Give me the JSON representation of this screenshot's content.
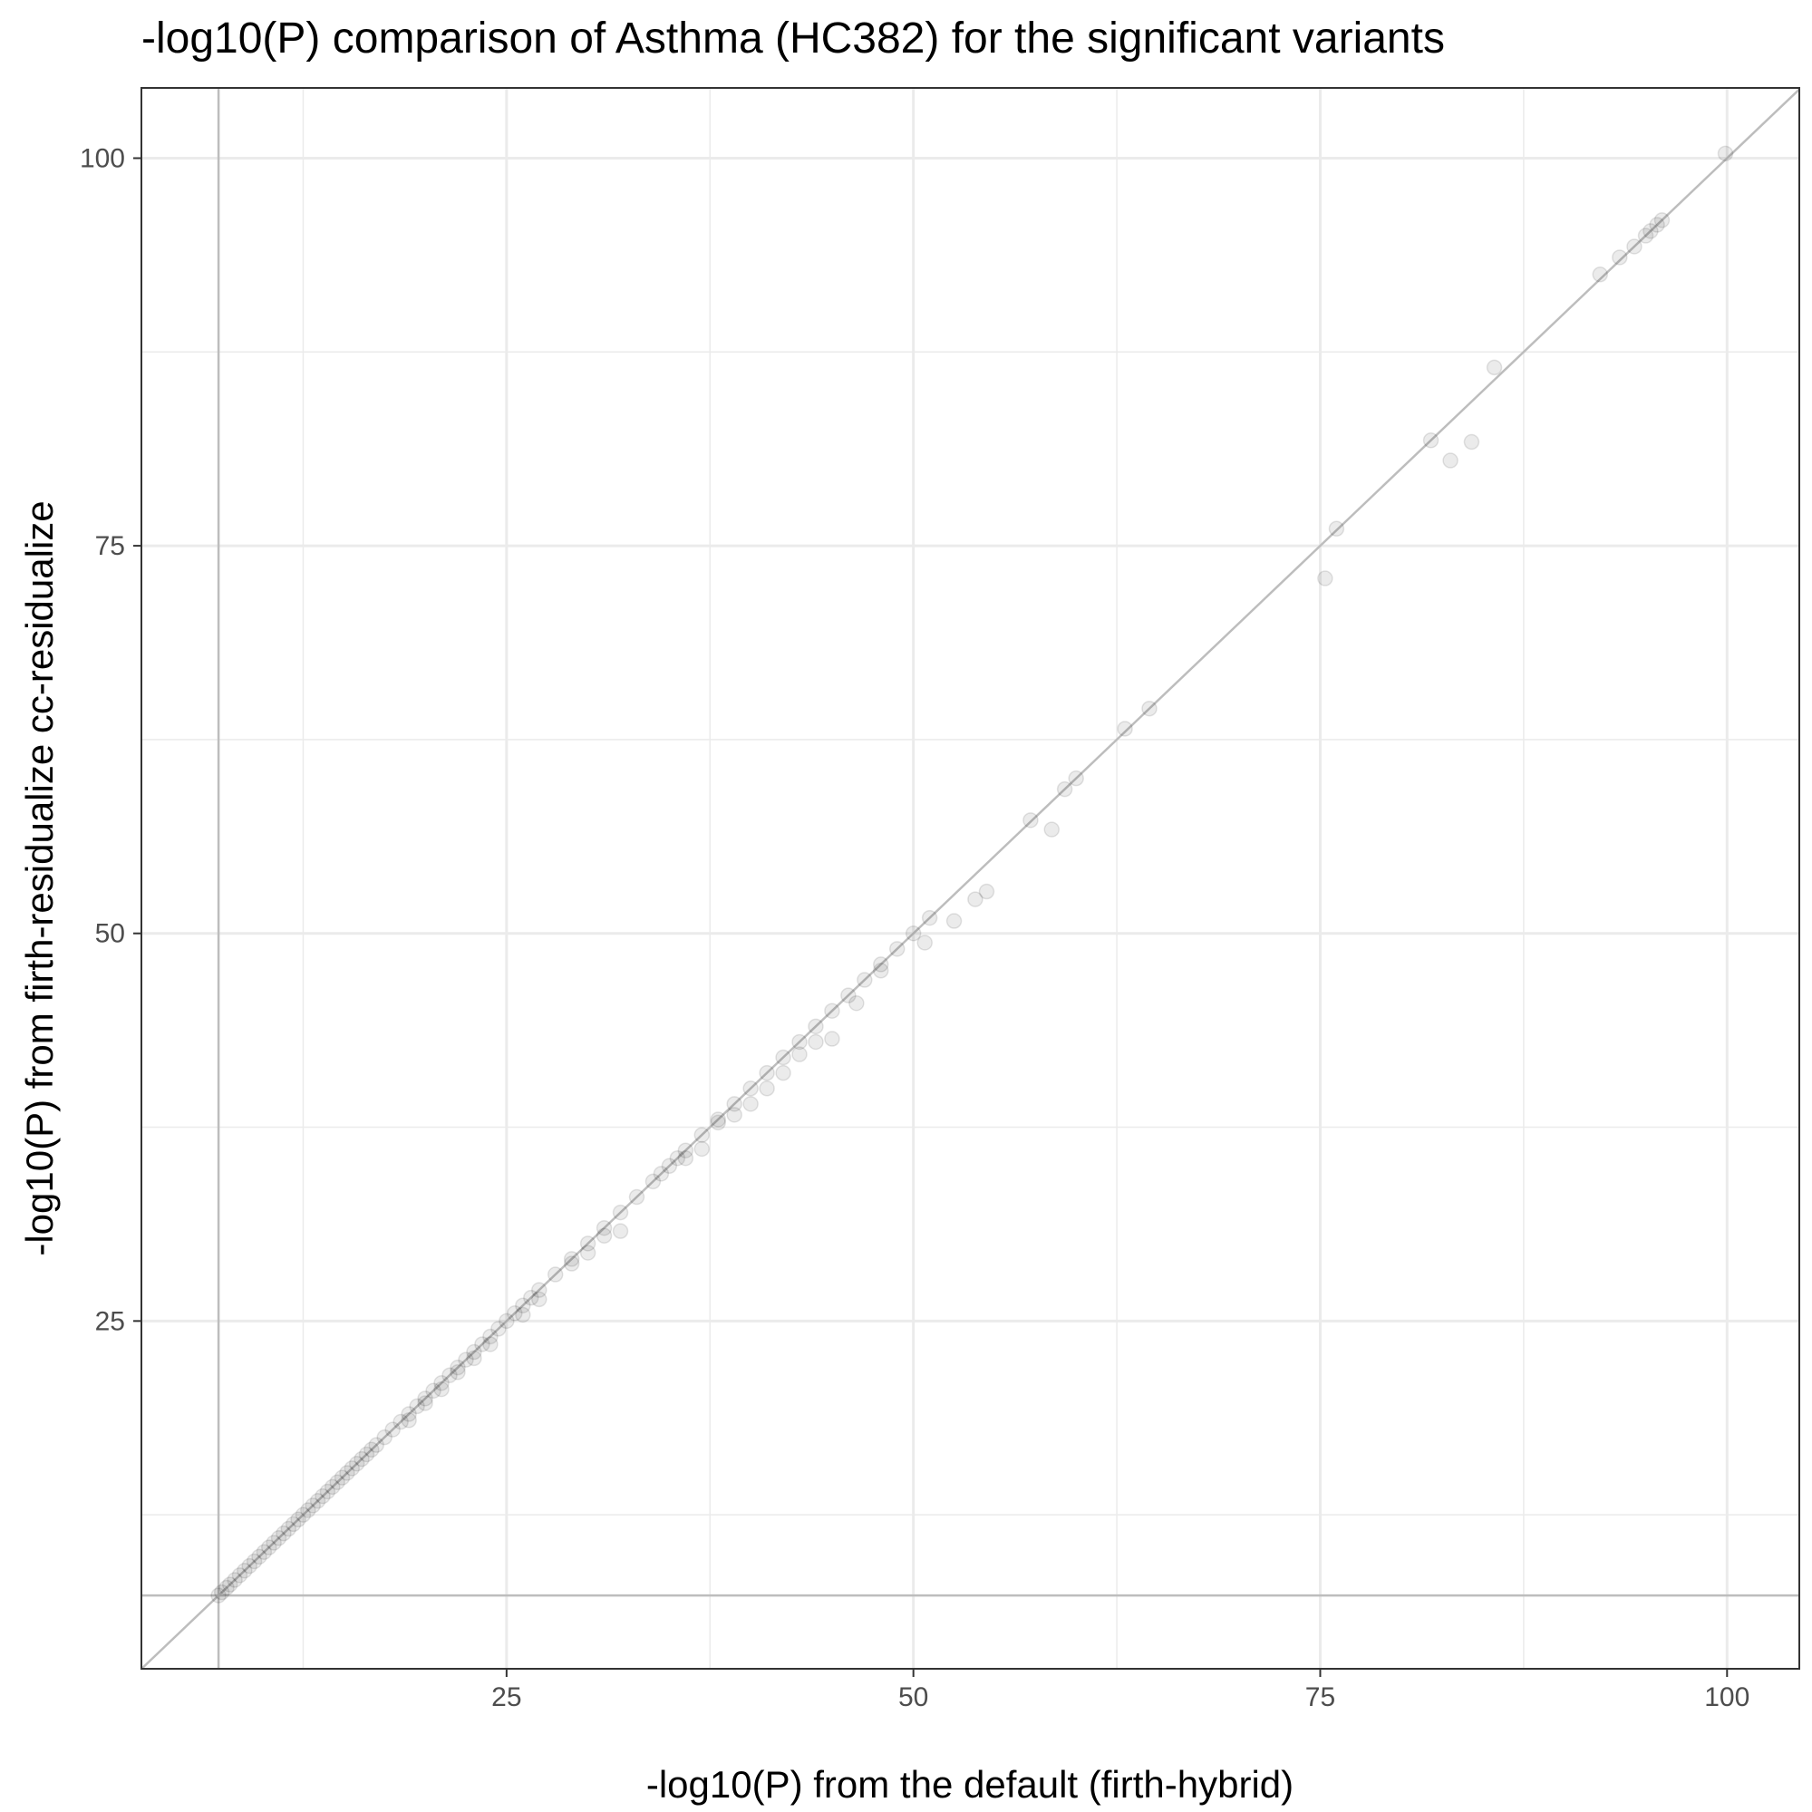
{
  "chart_data": {
    "type": "scatter",
    "title": "-log10(P) comparison of Asthma (HC382) for the significant variants",
    "xlabel": "-log10(P) from the default (firth-hybrid)",
    "ylabel": "-log10(P) from firth-residualize cc-residualize",
    "xlim": [
      2.56,
      104.44
    ],
    "ylim": [
      2.57,
      104.53
    ],
    "x_ticks": [
      25,
      50,
      75,
      100
    ],
    "y_ticks": [
      25,
      50,
      75,
      100
    ],
    "grid": true,
    "legend": "none",
    "reference_lines": {
      "identity_line": true,
      "vertical_x": 7.3,
      "horizontal_y": 7.3
    },
    "colors": {
      "points": "#000000",
      "reference_lines": "#bdbdbd",
      "grid": "#ebebeb",
      "panel_border": "#333333"
    },
    "point_opacity": 0.08,
    "series": [
      {
        "points": [
          [
            7.3,
            7.3
          ],
          [
            7.5,
            7.5
          ],
          [
            7.8,
            7.8
          ],
          [
            8.0,
            8.0
          ],
          [
            8.3,
            8.3
          ],
          [
            8.6,
            8.6
          ],
          [
            8.9,
            8.9
          ],
          [
            9.2,
            9.2
          ],
          [
            9.5,
            9.5
          ],
          [
            9.8,
            9.8
          ],
          [
            10.1,
            10.1
          ],
          [
            10.4,
            10.4
          ],
          [
            10.7,
            10.7
          ],
          [
            11.0,
            11.0
          ],
          [
            11.3,
            11.3
          ],
          [
            11.6,
            11.6
          ],
          [
            11.9,
            11.9
          ],
          [
            12.2,
            12.2
          ],
          [
            12.5,
            12.5
          ],
          [
            12.8,
            12.8
          ],
          [
            13.1,
            13.1
          ],
          [
            13.4,
            13.4
          ],
          [
            13.7,
            13.7
          ],
          [
            14.0,
            14.0
          ],
          [
            14.3,
            14.3
          ],
          [
            14.6,
            14.6
          ],
          [
            14.9,
            14.9
          ],
          [
            15.2,
            15.2
          ],
          [
            15.5,
            15.5
          ],
          [
            15.8,
            15.8
          ],
          [
            16.1,
            16.1
          ],
          [
            16.4,
            16.4
          ],
          [
            16.7,
            16.7
          ],
          [
            17.0,
            17.0
          ],
          [
            17.5,
            17.5
          ],
          [
            18.0,
            18.0
          ],
          [
            18.5,
            18.5
          ],
          [
            19.0,
            19.0
          ],
          [
            19.5,
            19.5
          ],
          [
            20.0,
            20.0
          ],
          [
            20.5,
            20.5
          ],
          [
            21.0,
            21.0
          ],
          [
            21.5,
            21.5
          ],
          [
            22.0,
            22.0
          ],
          [
            22.5,
            22.5
          ],
          [
            23.0,
            23.0
          ],
          [
            23.5,
            23.5
          ],
          [
            24.0,
            24.0
          ],
          [
            24.5,
            24.5
          ],
          [
            25.0,
            25.0
          ],
          [
            25.5,
            25.5
          ],
          [
            26.0,
            26.0
          ],
          [
            26.5,
            26.5
          ],
          [
            27.0,
            27.0
          ],
          [
            28.0,
            28.0
          ],
          [
            29.0,
            29.0
          ],
          [
            30.0,
            30.0
          ],
          [
            31.0,
            31.0
          ],
          [
            32.0,
            32.0
          ],
          [
            33.0,
            33.0
          ],
          [
            34.0,
            34.0
          ],
          [
            35.0,
            35.0
          ],
          [
            36.0,
            36.0
          ],
          [
            37.0,
            37.0
          ],
          [
            38.0,
            38.0
          ],
          [
            39.0,
            39.0
          ],
          [
            40.0,
            40.0
          ],
          [
            41.0,
            41.0
          ],
          [
            42.0,
            42.0
          ],
          [
            43.0,
            43.0
          ],
          [
            44.0,
            44.0
          ],
          [
            45.0,
            45.0
          ],
          [
            46.0,
            46.0
          ],
          [
            47.0,
            47.0
          ],
          [
            48.0,
            48.0
          ],
          [
            49.0,
            49.0
          ],
          [
            50.0,
            50.0
          ],
          [
            51.0,
            51.0
          ],
          [
            19.0,
            18.6
          ],
          [
            20.0,
            19.7
          ],
          [
            21.0,
            20.6
          ],
          [
            22.0,
            21.7
          ],
          [
            23.0,
            22.6
          ],
          [
            24.0,
            23.5
          ],
          [
            26.0,
            25.4
          ],
          [
            27.0,
            26.4
          ],
          [
            29.0,
            28.7
          ],
          [
            30.0,
            29.4
          ],
          [
            31.0,
            30.5
          ],
          [
            32.0,
            30.8
          ],
          [
            34.5,
            34.5
          ],
          [
            35.5,
            35.5
          ],
          [
            36.0,
            35.5
          ],
          [
            37.0,
            36.1
          ],
          [
            38.0,
            37.8
          ],
          [
            39.0,
            38.3
          ],
          [
            40.0,
            39.0
          ],
          [
            41.0,
            40.0
          ],
          [
            42.0,
            41.0
          ],
          [
            43.0,
            42.2
          ],
          [
            44.0,
            43.0
          ],
          [
            45.0,
            43.2
          ],
          [
            46.5,
            45.5
          ],
          [
            48.0,
            47.6
          ],
          [
            50.7,
            49.4
          ],
          [
            52.5,
            50.8
          ],
          [
            53.8,
            52.2
          ],
          [
            54.5,
            52.7
          ],
          [
            57.2,
            57.3
          ],
          [
            58.5,
            56.7
          ],
          [
            59.3,
            59.3
          ],
          [
            60.0,
            60.0
          ],
          [
            63.0,
            63.2
          ],
          [
            64.5,
            64.5
          ],
          [
            75.3,
            72.9
          ],
          [
            76.0,
            76.1
          ],
          [
            81.8,
            81.8
          ],
          [
            83.0,
            80.5
          ],
          [
            84.3,
            81.7
          ],
          [
            85.7,
            86.5
          ],
          [
            92.2,
            92.5
          ],
          [
            93.4,
            93.6
          ],
          [
            94.3,
            94.3
          ],
          [
            95.0,
            95.0
          ],
          [
            95.3,
            95.3
          ],
          [
            95.7,
            95.7
          ],
          [
            96.0,
            96.0
          ],
          [
            99.9,
            100.3
          ]
        ]
      }
    ]
  }
}
